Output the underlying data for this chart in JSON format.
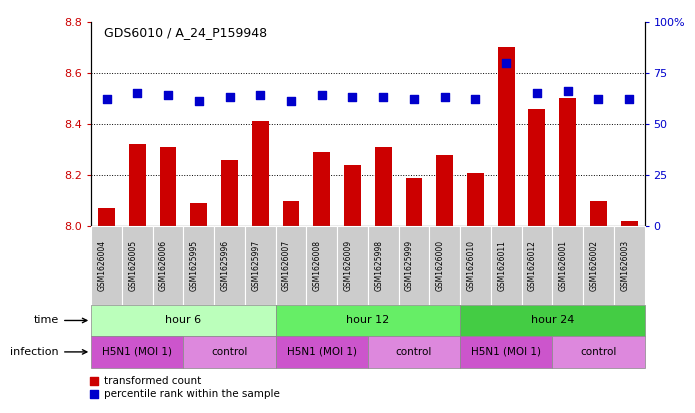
{
  "title": "GDS6010 / A_24_P159948",
  "samples": [
    "GSM1626004",
    "GSM1626005",
    "GSM1626006",
    "GSM1625995",
    "GSM1625996",
    "GSM1625997",
    "GSM1626007",
    "GSM1626008",
    "GSM1626009",
    "GSM1625998",
    "GSM1625999",
    "GSM1626000",
    "GSM1626010",
    "GSM1626011",
    "GSM1626012",
    "GSM1626001",
    "GSM1626002",
    "GSM1626003"
  ],
  "bar_values": [
    8.07,
    8.32,
    8.31,
    8.09,
    8.26,
    8.41,
    8.1,
    8.29,
    8.24,
    8.31,
    8.19,
    8.28,
    8.21,
    8.7,
    8.46,
    8.5,
    8.1,
    8.02
  ],
  "dot_values": [
    62,
    65,
    64,
    61,
    63,
    64,
    61,
    64,
    63,
    63,
    62,
    63,
    62,
    80,
    65,
    66,
    62,
    62
  ],
  "bar_color": "#cc0000",
  "dot_color": "#0000cc",
  "ylim_left": [
    8.0,
    8.8
  ],
  "ylim_right": [
    0,
    100
  ],
  "yticks_left": [
    8.0,
    8.2,
    8.4,
    8.6,
    8.8
  ],
  "yticks_right": [
    0,
    25,
    50,
    75,
    100
  ],
  "ytick_labels_right": [
    "0",
    "25",
    "50",
    "75",
    "100%"
  ],
  "hlines": [
    8.2,
    8.4,
    8.6
  ],
  "time_groups": [
    {
      "label": "hour 6",
      "start": 0,
      "end": 6,
      "color": "#bbffbb"
    },
    {
      "label": "hour 12",
      "start": 6,
      "end": 12,
      "color": "#66ee66"
    },
    {
      "label": "hour 24",
      "start": 12,
      "end": 18,
      "color": "#44cc44"
    }
  ],
  "infection_groups": [
    {
      "label": "H5N1 (MOI 1)",
      "start": 0,
      "end": 3,
      "color": "#cc55cc"
    },
    {
      "label": "control",
      "start": 3,
      "end": 6,
      "color": "#dd88dd"
    },
    {
      "label": "H5N1 (MOI 1)",
      "start": 6,
      "end": 9,
      "color": "#cc55cc"
    },
    {
      "label": "control",
      "start": 9,
      "end": 12,
      "color": "#dd88dd"
    },
    {
      "label": "H5N1 (MOI 1)",
      "start": 12,
      "end": 15,
      "color": "#cc55cc"
    },
    {
      "label": "control",
      "start": 15,
      "end": 18,
      "color": "#dd88dd"
    }
  ],
  "legend_bar_label": "transformed count",
  "legend_dot_label": "percentile rank within the sample",
  "time_label": "time",
  "infection_label": "infection",
  "bar_width": 0.55,
  "dot_size": 28,
  "sample_box_color": "#cccccc",
  "tick_label_color_left": "#cc0000",
  "tick_label_color_right": "#0000cc"
}
